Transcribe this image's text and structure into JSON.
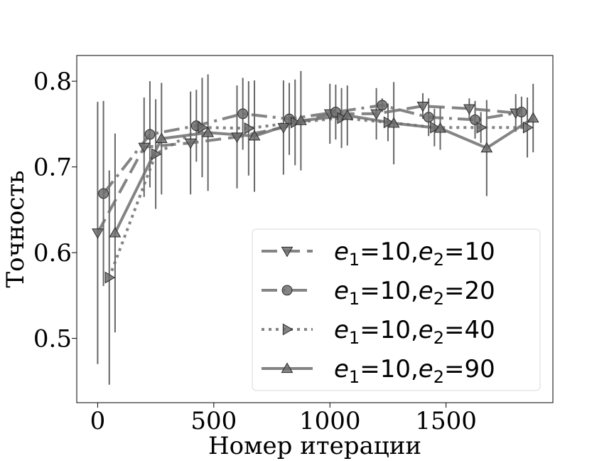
{
  "chart_data": {
    "type": "line",
    "xlabel": "Номер итерации",
    "ylabel": "Точность",
    "xlim": [
      -90,
      1960
    ],
    "ylim": [
      0.425,
      0.83
    ],
    "xticks": [
      0,
      500,
      1000,
      1500
    ],
    "xtick_labels": [
      "0",
      "500",
      "1000",
      "1500"
    ],
    "yticks": [
      0.5,
      0.6,
      0.7,
      0.8
    ],
    "ytick_labels": [
      "0.5",
      "0.6",
      "0.7",
      "0.8"
    ],
    "legend_position": "lower-right",
    "series": [
      {
        "name": "e1=10,e2=10",
        "legend": {
          "base": "e",
          "sub1": "1",
          "mid": "=10,",
          "base2": "e",
          "sub2": "2",
          "tail": "=10"
        },
        "marker": "triangle-down",
        "linestyle": "dashed",
        "color": "#6e6e6e",
        "x": [
          0,
          200,
          400,
          600,
          800,
          1000,
          1200,
          1400,
          1600,
          1800
        ],
        "y": [
          0.623,
          0.723,
          0.728,
          0.735,
          0.746,
          0.762,
          0.762,
          0.771,
          0.768,
          0.763
        ],
        "err": [
          0.153,
          0.058,
          0.06,
          0.06,
          0.055,
          0.035,
          0.03,
          0.015,
          0.012,
          0.022
        ]
      },
      {
        "name": "e1=10,e2=20",
        "legend": {
          "base": "e",
          "sub1": "1",
          "mid": "=10,",
          "base2": "e",
          "sub2": "2",
          "tail": "=20"
        },
        "marker": "circle",
        "linestyle": "dashdot",
        "color": "#6e6e6e",
        "x": [
          25,
          225,
          425,
          625,
          825,
          1025,
          1225,
          1425,
          1625,
          1825
        ],
        "y": [
          0.669,
          0.738,
          0.748,
          0.762,
          0.756,
          0.764,
          0.772,
          0.758,
          0.755,
          0.764
        ],
        "err": [
          0.108,
          0.062,
          0.042,
          0.042,
          0.042,
          0.032,
          0.008,
          0.022,
          0.022,
          0.018
        ]
      },
      {
        "name": "e1=10,e2=40",
        "legend": {
          "base": "e",
          "sub1": "1",
          "mid": "=10,",
          "base2": "e",
          "sub2": "2",
          "tail": "=40"
        },
        "marker": "triangle-right",
        "linestyle": "dotted",
        "color": "#6e6e6e",
        "x": [
          50,
          250,
          450,
          650,
          850,
          1050,
          1250,
          1450,
          1650,
          1850
        ],
        "y": [
          0.571,
          0.715,
          0.746,
          0.745,
          0.752,
          0.757,
          0.752,
          0.746,
          0.746,
          0.746
        ],
        "err": [
          0.125,
          0.064,
          0.058,
          0.055,
          0.05,
          0.035,
          0.022,
          0.022,
          0.018,
          0.035
        ]
      },
      {
        "name": "e1=10,e2=90",
        "legend": {
          "base": "e",
          "sub1": "1",
          "mid": "=10,",
          "base2": "e",
          "sub2": "2",
          "tail": "=90"
        },
        "marker": "triangle-up",
        "linestyle": "solid",
        "color": "#6e6e6e",
        "x": [
          75,
          275,
          475,
          675,
          875,
          1075,
          1275,
          1475,
          1675,
          1875
        ],
        "y": [
          0.623,
          0.733,
          0.74,
          0.736,
          0.754,
          0.76,
          0.751,
          0.745,
          0.722,
          0.757
        ],
        "err": [
          0.116,
          0.065,
          0.068,
          0.065,
          0.058,
          0.035,
          0.048,
          0.025,
          0.056,
          0.04
        ]
      }
    ]
  }
}
